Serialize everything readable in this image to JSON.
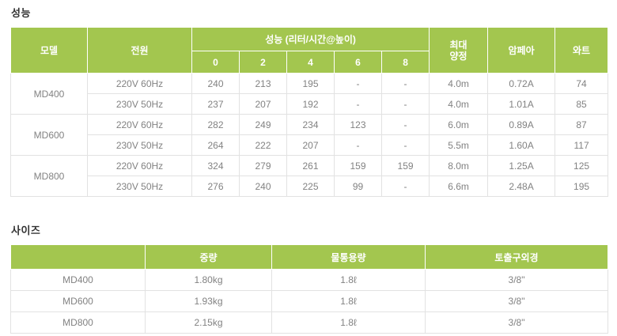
{
  "colors": {
    "header_green": "#a3c64f",
    "header_text": "#ffffff",
    "body_text": "#828282",
    "title_text": "#333333",
    "grid_border": "#e2e2e2"
  },
  "performance": {
    "title": "성능",
    "headers": {
      "model": "모델",
      "power": "전원",
      "perf_group": "성능 (리터/시간@높이)",
      "heights": [
        "0",
        "2",
        "4",
        "6",
        "8"
      ],
      "max_head": "최대\n양정",
      "ampere": "암페아",
      "watt": "와트"
    },
    "rows": [
      {
        "model": "MD400",
        "power": "220V 60Hz",
        "values": [
          "240",
          "213",
          "195",
          "-",
          "-"
        ],
        "max_head": "4.0m",
        "ampere": "0.72A",
        "watt": "74"
      },
      {
        "power": "230V 50Hz",
        "values": [
          "237",
          "207",
          "192",
          "-",
          "-"
        ],
        "max_head": "4.0m",
        "ampere": "1.01A",
        "watt": "85"
      },
      {
        "model": "MD600",
        "power": "220V 60Hz",
        "values": [
          "282",
          "249",
          "234",
          "123",
          "-"
        ],
        "max_head": "6.0m",
        "ampere": "0.89A",
        "watt": "87"
      },
      {
        "power": "230V 50Hz",
        "values": [
          "264",
          "222",
          "207",
          "-",
          "-"
        ],
        "max_head": "5.5m",
        "ampere": "1.60A",
        "watt": "117"
      },
      {
        "model": "MD800",
        "power": "220V 60Hz",
        "values": [
          "324",
          "279",
          "261",
          "159",
          "159"
        ],
        "max_head": "8.0m",
        "ampere": "1.25A",
        "watt": "125"
      },
      {
        "power": "230V 50Hz",
        "values": [
          "276",
          "240",
          "225",
          "99",
          "-"
        ],
        "max_head": "6.6m",
        "ampere": "2.48A",
        "watt": "195"
      }
    ]
  },
  "size": {
    "title": "사이즈",
    "headers": [
      "",
      "중량",
      "물통용량",
      "토출구외경"
    ],
    "rows": [
      {
        "model": "MD400",
        "weight": "1.80kg",
        "capacity": "1.8ℓ",
        "outlet": "3/8\""
      },
      {
        "model": "MD600",
        "weight": "1.93kg",
        "capacity": "1.8ℓ",
        "outlet": "3/8\""
      },
      {
        "model": "MD800",
        "weight": "2.15kg",
        "capacity": "1.8ℓ",
        "outlet": "3/8\""
      }
    ]
  }
}
